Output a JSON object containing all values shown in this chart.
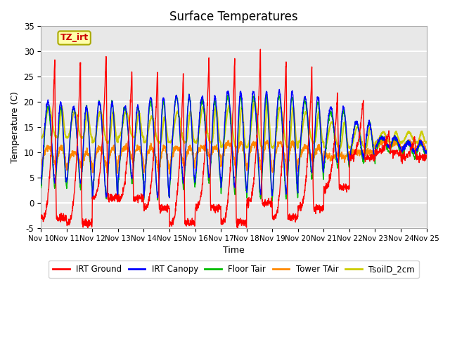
{
  "title": "Surface Temperatures",
  "xlabel": "Time",
  "ylabel": "Temperature (C)",
  "ylim": [
    -5,
    35
  ],
  "annotation_text": "TZ_irt",
  "legend_labels": [
    "IRT Ground",
    "IRT Canopy",
    "Floor Tair",
    "Tower TAir",
    "TsoilD_2cm"
  ],
  "line_colors": [
    "#ff0000",
    "#0000ff",
    "#00bb00",
    "#ff8800",
    "#cccc00"
  ],
  "background_color": "#e8e8e8",
  "grid_color": "#ffffff",
  "title_fontsize": 12,
  "day_peaks_ground": [
    29,
    29,
    30,
    27,
    27,
    26,
    29,
    29,
    30,
    29,
    27,
    22,
    21,
    14,
    13
  ],
  "day_mins_ground": [
    -3,
    -4,
    1,
    1,
    -1,
    -4,
    -1,
    -4,
    0,
    -3,
    -1,
    3,
    9,
    10,
    9
  ],
  "day_peaks_canopy": [
    20,
    19,
    20,
    19,
    21,
    21,
    21,
    22,
    22,
    22,
    21,
    19,
    16,
    13,
    12
  ],
  "day_mins_canopy": [
    4,
    4,
    1,
    5,
    1,
    4,
    5,
    3,
    2,
    2,
    6,
    8,
    9,
    11,
    10
  ],
  "day_peaks_floor": [
    19,
    19,
    20,
    19,
    20,
    21,
    20,
    21,
    21,
    21,
    20,
    18,
    16,
    13,
    12
  ],
  "day_mins_floor": [
    3,
    3,
    1,
    4,
    1,
    3,
    4,
    2,
    1,
    1,
    5,
    7,
    8,
    10,
    9
  ],
  "day_peaks_tower": [
    11,
    10,
    11,
    11,
    11,
    11,
    11,
    12,
    12,
    12,
    11,
    9,
    10,
    12,
    12
  ],
  "day_mins_tower": [
    7,
    7,
    6,
    8,
    6,
    7,
    9,
    7,
    6,
    6,
    8,
    10,
    10,
    11,
    10
  ],
  "day_peaks_soil": [
    19,
    18,
    18,
    18,
    17,
    18,
    19,
    19,
    20,
    19,
    18,
    16,
    15,
    14,
    14
  ],
  "day_mins_soil": [
    13,
    13,
    12,
    13,
    12,
    12,
    12,
    11,
    11,
    11,
    12,
    11,
    11,
    12,
    12
  ],
  "x_tick_labels": [
    "Nov 10",
    "Nov 11",
    "Nov 12",
    "Nov 13",
    "Nov 14",
    "Nov 15",
    "Nov 16",
    "Nov 17",
    "Nov 18",
    "Nov 19",
    "Nov 20",
    "Nov 21",
    "Nov 22",
    "Nov 23",
    "Nov 24",
    "Nov 25"
  ]
}
